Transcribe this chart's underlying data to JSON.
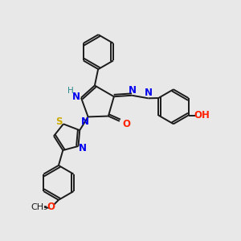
{
  "bg_color": "#e8e8e8",
  "bond_color": "#1a1a1a",
  "figsize": [
    3.0,
    3.0
  ],
  "dpi": 100,
  "atom_colors": {
    "N": "#0000ee",
    "O": "#ff2200",
    "S": "#ccaa00",
    "C": "#1a1a1a",
    "H": "#2a8a8a"
  },
  "lw": 1.4,
  "fs": 8.5
}
